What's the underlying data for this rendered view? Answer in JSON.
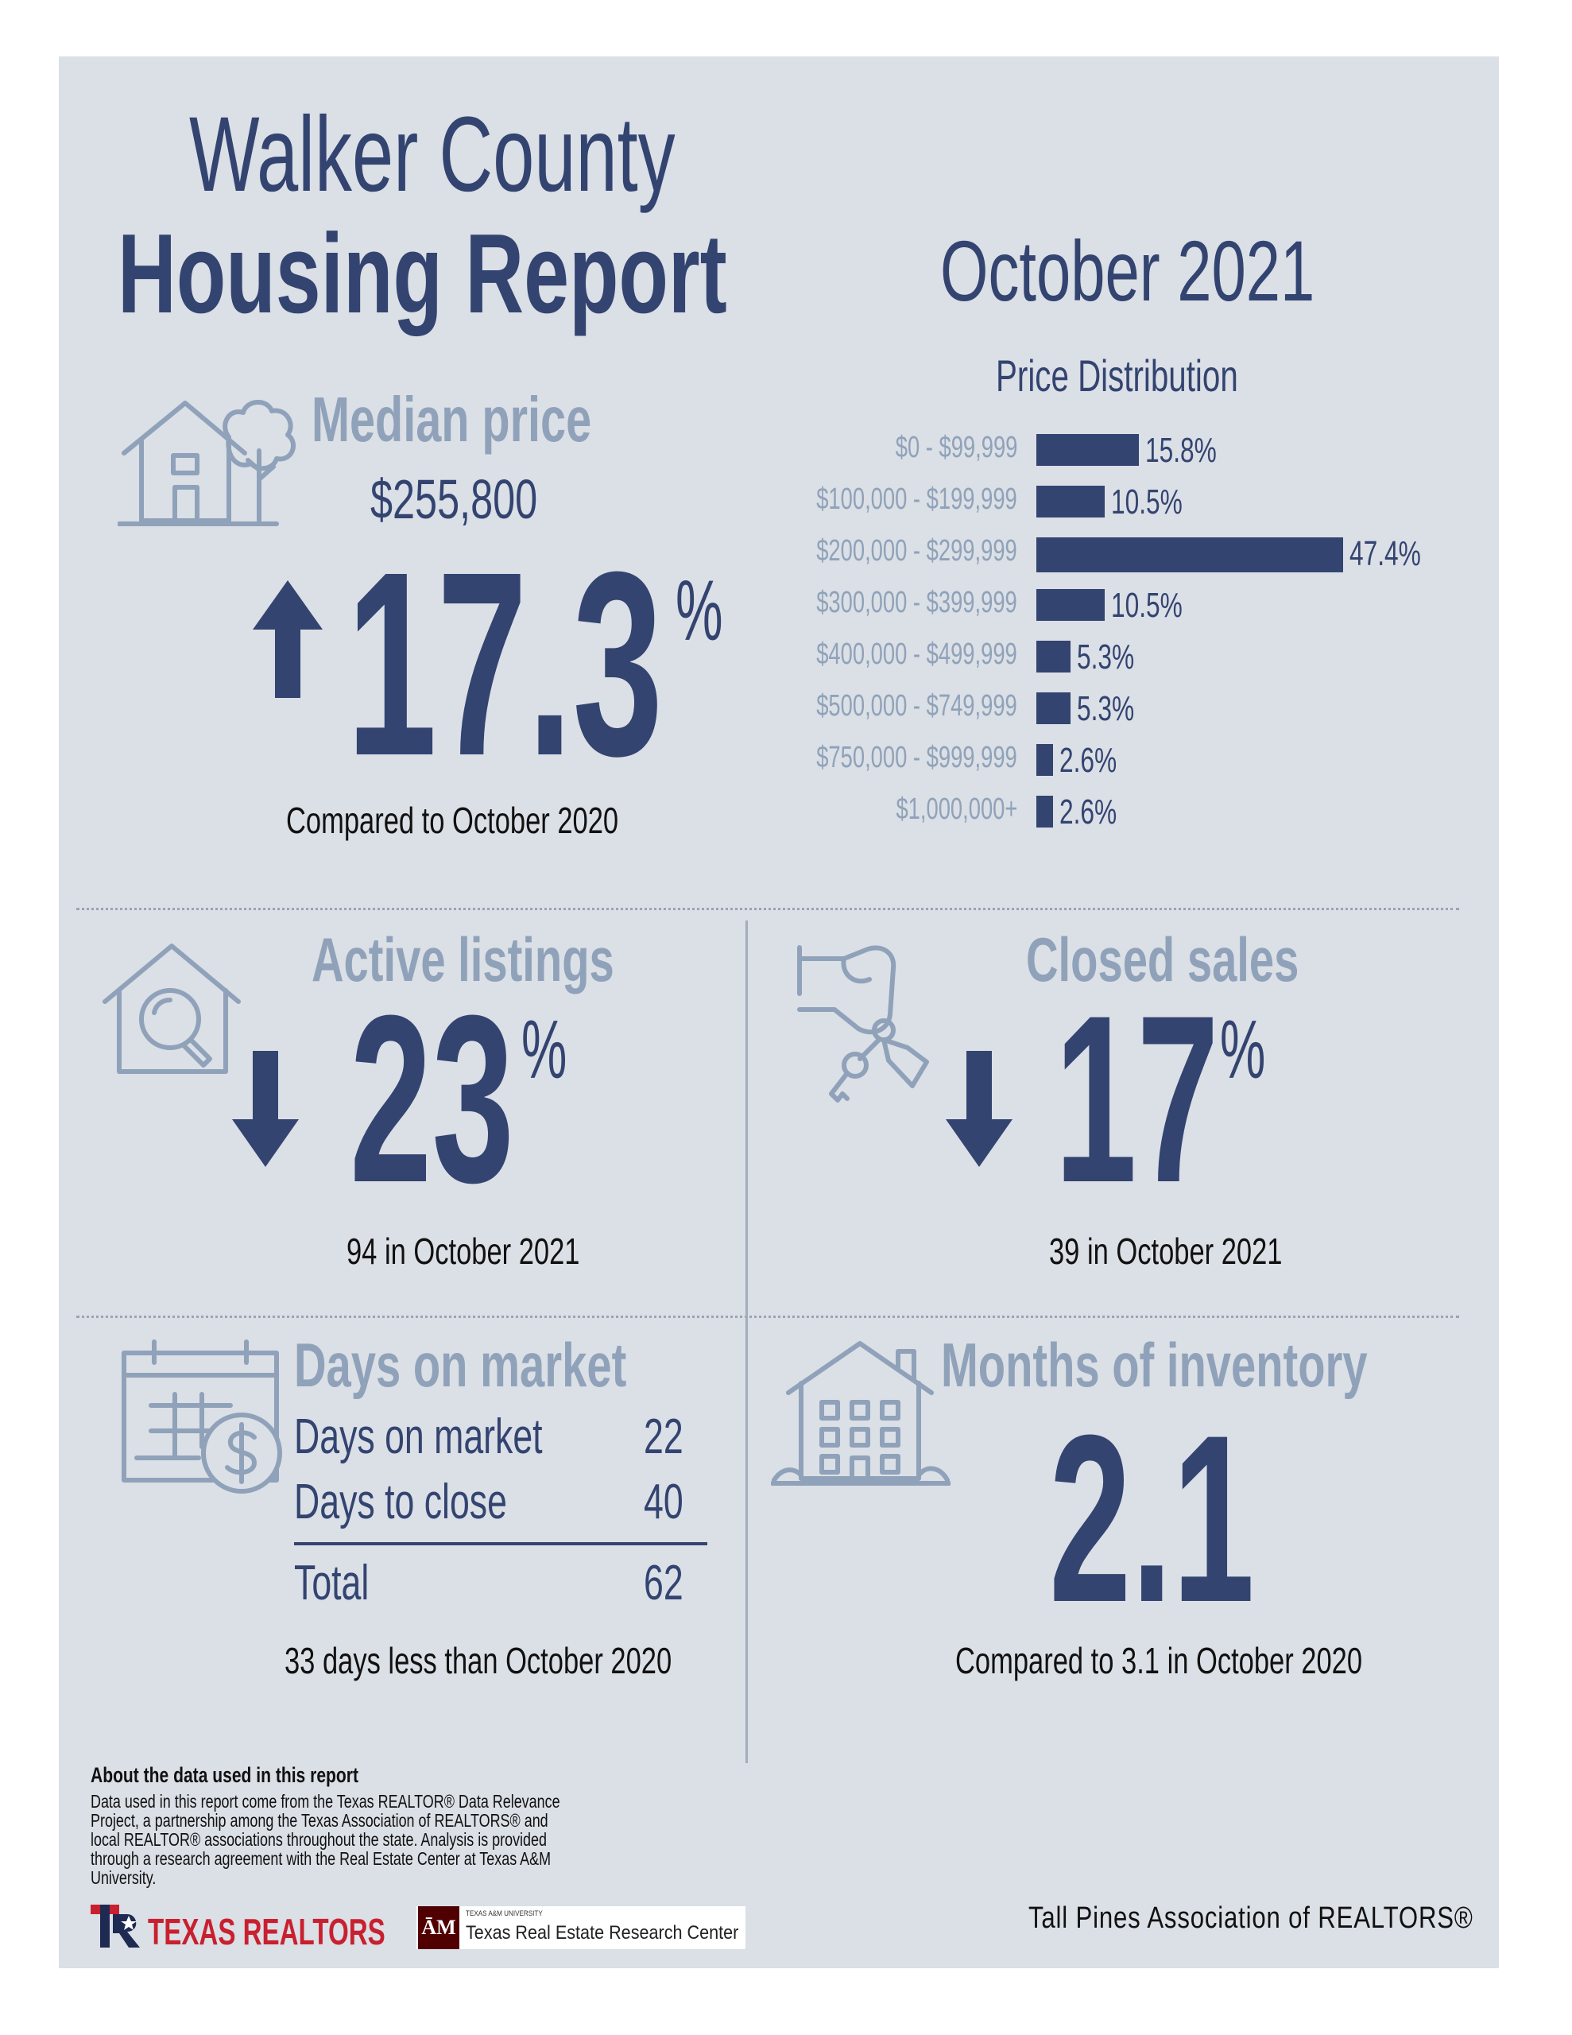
{
  "header": {
    "title_line1": "Walker County",
    "title_line2": "Housing Report",
    "date": "October 2021"
  },
  "median_price": {
    "label": "Median price",
    "value": "$255,800",
    "change": "17.3",
    "percent_sign": "%",
    "direction": "up",
    "comparison": "Compared to October 2020"
  },
  "chart_data": {
    "type": "bar",
    "orientation": "horizontal",
    "title": "Price Distribution",
    "categories": [
      "$0 - $99,999",
      "$100,000 - $199,999",
      "$200,000 - $299,999",
      "$300,000 - $399,999",
      "$400,000 - $499,999",
      "$500,000 - $749,999",
      "$750,000 - $999,999",
      "$1,000,000+"
    ],
    "values": [
      15.8,
      10.5,
      47.4,
      10.5,
      5.3,
      5.3,
      2.6,
      2.6
    ],
    "value_labels": [
      "15.8%",
      "10.5%",
      "47.4%",
      "10.5%",
      "5.3%",
      "5.3%",
      "2.6%",
      "2.6%"
    ],
    "bar_color": "#334470"
  },
  "active_listings": {
    "label": "Active listings",
    "change": "23",
    "percent_sign": "%",
    "direction": "down",
    "detail": "94 in October 2021"
  },
  "closed_sales": {
    "label": "Closed sales",
    "change": "17",
    "percent_sign": "%",
    "direction": "down",
    "detail": "39 in October 2021"
  },
  "days_on_market": {
    "label": "Days on market",
    "rows": [
      {
        "label": "Days on market",
        "value": "22"
      },
      {
        "label": "Days to close",
        "value": "40"
      }
    ],
    "total_label": "Total",
    "total_value": "62",
    "comparison": "33 days less than October 2020"
  },
  "months_inventory": {
    "label": "Months of inventory",
    "value": "2.1",
    "comparison": "Compared to 3.1 in October 2020"
  },
  "about": {
    "heading": "About the data used in this report",
    "body": "Data used in this report come from the Texas REALTOR® Data Relevance Project, a partnership among the Texas Association of REALTORS® and local REALTOR® associations throughout the state. Analysis is provided through a research agreement with the Real Estate Center at Texas A&M University."
  },
  "footer": {
    "texas_realtors": "TEXAS REALTORS",
    "tamu_small": "TEXAS A&M UNIVERSITY",
    "tamu_large": "Texas Real Estate Research Center",
    "association": "Tall Pines Association of REALTORS®"
  },
  "colors": {
    "navy": "#334470",
    "gray_blue": "#8fa2b9",
    "panel": "#dbdfe6",
    "brand_red": "#c8202f",
    "tamu_maroon": "#500000"
  },
  "icons": [
    "house-tree-icon",
    "arrow-up-icon",
    "house-search-icon",
    "arrow-down-icon",
    "hand-keys-icon",
    "calendar-dollar-icon",
    "apartment-building-icon",
    "texas-realtors-logo-icon",
    "tamu-logo-icon"
  ]
}
